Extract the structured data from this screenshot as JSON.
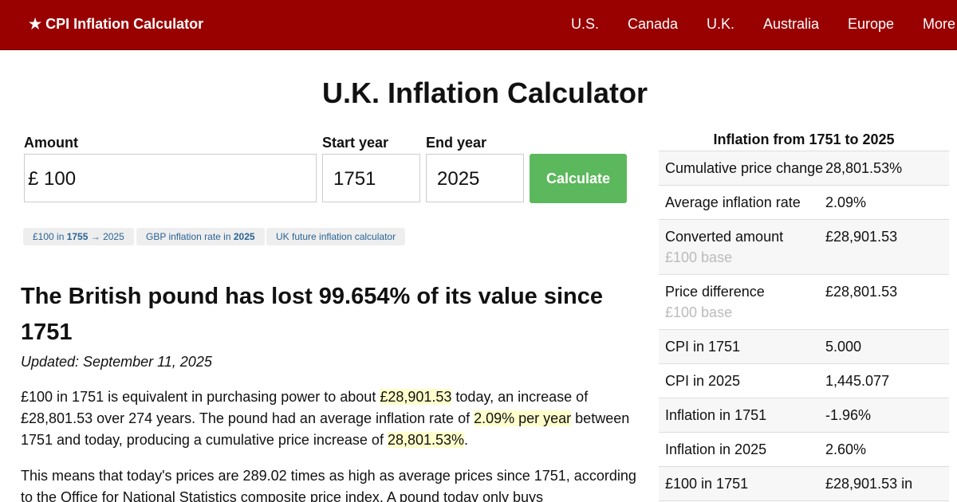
{
  "header": {
    "logo": "★ CPI Inflation Calculator",
    "nav": [
      "U.S.",
      "Canada",
      "U.K.",
      "Australia",
      "Europe",
      "More"
    ]
  },
  "title": "U.K. Inflation Calculator",
  "form": {
    "amount_label": "Amount",
    "currency": "£",
    "amount": "100",
    "start_label": "Start year",
    "start": "1751",
    "end_label": "End year",
    "end": "2025",
    "button": "Calculate"
  },
  "tags": [
    [
      "£100 in ",
      "1755",
      " → 2025"
    ],
    [
      "GBP inflation rate in ",
      "2025"
    ],
    [
      "UK future inflation calculator"
    ]
  ],
  "heading": "The British pound has lost 99.654% of its value since 1751",
  "updated": "Updated: September 11, 2025",
  "paragraphs": [
    [
      "£100 in 1751 is equivalent in purchasing power to about ",
      "£28,901.53",
      " today, an increase of £28,801.53 over 274 years. The pound had an average inflation rate of ",
      "2.09% per year",
      " between 1751 and today, producing a cumulative price increase of ",
      "28,801.53%",
      "."
    ],
    [
      "This means that today's prices are 289.02 times as high as average prices since 1751, according to the Office for National Statistics composite price index. A pound today only buys"
    ]
  ],
  "sidebar": {
    "title": "Inflation from 1751 to 2025",
    "rows": [
      {
        "label": "Cumulative price change",
        "value": "28,801.53%"
      },
      {
        "label": "Average inflation rate",
        "value": "2.09%"
      },
      {
        "label": "Converted amount",
        "note": "£100 base",
        "value": "£28,901.53"
      },
      {
        "label": "Price difference",
        "note": "£100 base",
        "value": "£28,801.53"
      },
      {
        "label": "CPI in 1751",
        "value": "5.000"
      },
      {
        "label": "CPI in 2025",
        "value": "1,445.077"
      },
      {
        "label": "Inflation in 1751",
        "value": "-1.96%"
      },
      {
        "label": "Inflation in 2025",
        "value": "2.60%"
      },
      {
        "label": "£100 in 1751",
        "value": "£28,901.53 in"
      }
    ]
  }
}
